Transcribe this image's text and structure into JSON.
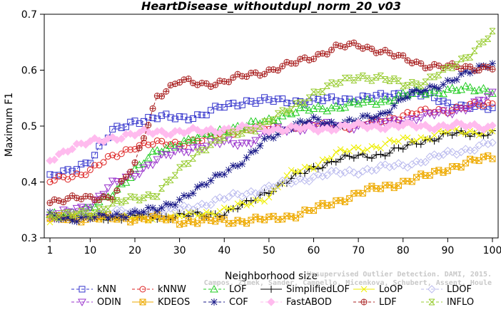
{
  "chart_data": {
    "type": "line",
    "title": "HeartDisease_withoutdupl_norm_20_v03",
    "xlabel": "Neighborhood size",
    "ylabel": "Maximum F1",
    "xlim": [
      1,
      100
    ],
    "ylim": [
      0.3,
      0.7
    ],
    "xticks": [
      "1",
      "10",
      "20",
      "30",
      "40",
      "50",
      "60",
      "70",
      "80",
      "90",
      "100"
    ],
    "yticks": [
      "0.3",
      "0.4",
      "0.5",
      "0.6",
      "0.7"
    ],
    "grid": false,
    "legend_position": "bottom",
    "watermark": [
      "Campos, Zimek, Sander, Campello, Micenkova, Schubert, Assent, Houle",
      "Unsupervised Outlier Detection. DAMI, 2015."
    ],
    "series": [
      {
        "name": "kNN",
        "color": "#3333cc",
        "marker": "square",
        "dash": "dash",
        "points": [
          [
            1,
            0.408
          ],
          [
            5,
            0.418
          ],
          [
            10,
            0.44
          ],
          [
            15,
            0.49
          ],
          [
            20,
            0.51
          ],
          [
            25,
            0.515
          ],
          [
            30,
            0.515
          ],
          [
            35,
            0.52
          ],
          [
            40,
            0.535
          ],
          [
            45,
            0.545
          ],
          [
            50,
            0.545
          ],
          [
            60,
            0.545
          ],
          [
            70,
            0.55
          ],
          [
            75,
            0.552
          ],
          [
            80,
            0.56
          ],
          [
            85,
            0.555
          ],
          [
            90,
            0.54
          ],
          [
            95,
            0.535
          ],
          [
            100,
            0.53
          ]
        ]
      },
      {
        "name": "kNNW",
        "color": "#dd2222",
        "marker": "circle",
        "dash": "dash",
        "points": [
          [
            1,
            0.4
          ],
          [
            5,
            0.41
          ],
          [
            10,
            0.42
          ],
          [
            15,
            0.445
          ],
          [
            20,
            0.465
          ],
          [
            25,
            0.468
          ],
          [
            30,
            0.47
          ],
          [
            35,
            0.475
          ],
          [
            40,
            0.49
          ],
          [
            45,
            0.495
          ],
          [
            50,
            0.495
          ],
          [
            60,
            0.5
          ],
          [
            70,
            0.5
          ],
          [
            75,
            0.51
          ],
          [
            80,
            0.52
          ],
          [
            85,
            0.525
          ],
          [
            90,
            0.53
          ],
          [
            95,
            0.535
          ],
          [
            100,
            0.54
          ]
        ]
      },
      {
        "name": "LOF",
        "color": "#22cc22",
        "marker": "triangle-up",
        "dash": "dash",
        "points": [
          [
            1,
            0.34
          ],
          [
            5,
            0.345
          ],
          [
            10,
            0.35
          ],
          [
            15,
            0.38
          ],
          [
            20,
            0.42
          ],
          [
            25,
            0.455
          ],
          [
            30,
            0.47
          ],
          [
            35,
            0.48
          ],
          [
            40,
            0.495
          ],
          [
            45,
            0.5
          ],
          [
            50,
            0.51
          ],
          [
            55,
            0.525
          ],
          [
            60,
            0.53
          ],
          [
            65,
            0.535
          ],
          [
            70,
            0.54
          ],
          [
            75,
            0.545
          ],
          [
            80,
            0.555
          ],
          [
            85,
            0.56
          ],
          [
            90,
            0.565
          ],
          [
            95,
            0.565
          ],
          [
            100,
            0.565
          ]
        ]
      },
      {
        "name": "SimplifiedLOF",
        "color": "#000000",
        "marker": "plus",
        "dash": "solid",
        "points": [
          [
            1,
            0.34
          ],
          [
            5,
            0.338
          ],
          [
            10,
            0.336
          ],
          [
            15,
            0.337
          ],
          [
            20,
            0.338
          ],
          [
            25,
            0.338
          ],
          [
            30,
            0.34
          ],
          [
            35,
            0.34
          ],
          [
            40,
            0.345
          ],
          [
            45,
            0.36
          ],
          [
            50,
            0.385
          ],
          [
            55,
            0.405
          ],
          [
            60,
            0.425
          ],
          [
            65,
            0.44
          ],
          [
            70,
            0.445
          ],
          [
            75,
            0.45
          ],
          [
            80,
            0.46
          ],
          [
            85,
            0.475
          ],
          [
            90,
            0.485
          ],
          [
            95,
            0.485
          ],
          [
            100,
            0.49
          ]
        ]
      },
      {
        "name": "LoOP",
        "color": "#eeee00",
        "marker": "cross",
        "dash": "solid",
        "points": [
          [
            1,
            0.335
          ],
          [
            10,
            0.34
          ],
          [
            20,
            0.335
          ],
          [
            30,
            0.338
          ],
          [
            40,
            0.35
          ],
          [
            45,
            0.36
          ],
          [
            50,
            0.375
          ],
          [
            55,
            0.415
          ],
          [
            60,
            0.43
          ],
          [
            65,
            0.45
          ],
          [
            70,
            0.46
          ],
          [
            75,
            0.465
          ],
          [
            80,
            0.475
          ],
          [
            85,
            0.48
          ],
          [
            90,
            0.49
          ],
          [
            95,
            0.49
          ],
          [
            100,
            0.49
          ]
        ]
      },
      {
        "name": "LDOF",
        "color": "#bbbbee",
        "marker": "diamond",
        "dash": "dash",
        "points": [
          [
            1,
            0.34
          ],
          [
            10,
            0.345
          ],
          [
            20,
            0.345
          ],
          [
            25,
            0.345
          ],
          [
            30,
            0.35
          ],
          [
            35,
            0.36
          ],
          [
            40,
            0.37
          ],
          [
            45,
            0.38
          ],
          [
            50,
            0.39
          ],
          [
            55,
            0.4
          ],
          [
            60,
            0.41
          ],
          [
            65,
            0.415
          ],
          [
            70,
            0.42
          ],
          [
            75,
            0.425
          ],
          [
            80,
            0.43
          ],
          [
            85,
            0.44
          ],
          [
            90,
            0.45
          ],
          [
            95,
            0.46
          ],
          [
            100,
            0.47
          ]
        ]
      },
      {
        "name": "ODIN",
        "color": "#9933cc",
        "marker": "triangle-down",
        "dash": "dash",
        "points": [
          [
            1,
            0.335
          ],
          [
            10,
            0.36
          ],
          [
            15,
            0.395
          ],
          [
            20,
            0.415
          ],
          [
            25,
            0.44
          ],
          [
            30,
            0.455
          ],
          [
            35,
            0.465
          ],
          [
            40,
            0.47
          ],
          [
            45,
            0.47
          ],
          [
            50,
            0.49
          ],
          [
            60,
            0.5
          ],
          [
            70,
            0.5
          ],
          [
            80,
            0.51
          ],
          [
            90,
            0.525
          ],
          [
            95,
            0.535
          ],
          [
            100,
            0.555
          ]
        ]
      },
      {
        "name": "KDEOS",
        "color": "#eeaa00",
        "marker": "box-x",
        "dash": "solid",
        "points": [
          [
            1,
            0.335
          ],
          [
            10,
            0.335
          ],
          [
            20,
            0.335
          ],
          [
            25,
            0.335
          ],
          [
            30,
            0.33
          ],
          [
            40,
            0.33
          ],
          [
            50,
            0.333
          ],
          [
            55,
            0.34
          ],
          [
            60,
            0.35
          ],
          [
            65,
            0.365
          ],
          [
            70,
            0.38
          ],
          [
            75,
            0.39
          ],
          [
            80,
            0.4
          ],
          [
            85,
            0.41
          ],
          [
            90,
            0.425
          ],
          [
            95,
            0.435
          ],
          [
            100,
            0.445
          ]
        ]
      },
      {
        "name": "COF",
        "color": "#1a1a88",
        "marker": "asterisk",
        "dash": "dash",
        "points": [
          [
            1,
            0.34
          ],
          [
            5,
            0.335
          ],
          [
            10,
            0.335
          ],
          [
            15,
            0.34
          ],
          [
            20,
            0.345
          ],
          [
            25,
            0.35
          ],
          [
            30,
            0.37
          ],
          [
            35,
            0.39
          ],
          [
            40,
            0.42
          ],
          [
            45,
            0.44
          ],
          [
            50,
            0.48
          ],
          [
            55,
            0.5
          ],
          [
            60,
            0.51
          ],
          [
            65,
            0.505
          ],
          [
            70,
            0.51
          ],
          [
            75,
            0.52
          ],
          [
            80,
            0.55
          ],
          [
            85,
            0.565
          ],
          [
            90,
            0.58
          ],
          [
            95,
            0.595
          ],
          [
            100,
            0.615
          ]
        ]
      },
      {
        "name": "FastABOD",
        "color": "#ffbbee",
        "marker": "diamond-filled",
        "dash": "dash",
        "points": [
          [
            1,
            0.44
          ],
          [
            5,
            0.46
          ],
          [
            10,
            0.47
          ],
          [
            15,
            0.48
          ],
          [
            20,
            0.485
          ],
          [
            25,
            0.49
          ],
          [
            30,
            0.49
          ],
          [
            35,
            0.49
          ],
          [
            40,
            0.495
          ],
          [
            45,
            0.495
          ],
          [
            50,
            0.495
          ],
          [
            60,
            0.495
          ],
          [
            70,
            0.5
          ],
          [
            80,
            0.5
          ],
          [
            90,
            0.5
          ],
          [
            100,
            0.5
          ]
        ]
      },
      {
        "name": "LDF",
        "color": "#aa2222",
        "marker": "circle-plus",
        "dash": "dash",
        "points": [
          [
            1,
            0.367
          ],
          [
            5,
            0.37
          ],
          [
            10,
            0.37
          ],
          [
            15,
            0.375
          ],
          [
            20,
            0.43
          ],
          [
            25,
            0.555
          ],
          [
            30,
            0.58
          ],
          [
            35,
            0.575
          ],
          [
            40,
            0.58
          ],
          [
            45,
            0.59
          ],
          [
            50,
            0.6
          ],
          [
            55,
            0.61
          ],
          [
            60,
            0.625
          ],
          [
            65,
            0.64
          ],
          [
            70,
            0.645
          ],
          [
            75,
            0.635
          ],
          [
            80,
            0.62
          ],
          [
            85,
            0.61
          ],
          [
            90,
            0.605
          ],
          [
            95,
            0.605
          ],
          [
            100,
            0.605
          ]
        ]
      },
      {
        "name": "INFLO",
        "color": "#99cc33",
        "marker": "hourglass",
        "dash": "dash",
        "points": [
          [
            1,
            0.34
          ],
          [
            5,
            0.34
          ],
          [
            10,
            0.345
          ],
          [
            15,
            0.36
          ],
          [
            20,
            0.37
          ],
          [
            25,
            0.38
          ],
          [
            30,
            0.42
          ],
          [
            35,
            0.46
          ],
          [
            40,
            0.48
          ],
          [
            45,
            0.49
          ],
          [
            50,
            0.51
          ],
          [
            55,
            0.53
          ],
          [
            60,
            0.56
          ],
          [
            65,
            0.575
          ],
          [
            70,
            0.59
          ],
          [
            75,
            0.585
          ],
          [
            80,
            0.575
          ],
          [
            85,
            0.58
          ],
          [
            90,
            0.6
          ],
          [
            95,
            0.63
          ],
          [
            100,
            0.665
          ]
        ]
      }
    ]
  }
}
